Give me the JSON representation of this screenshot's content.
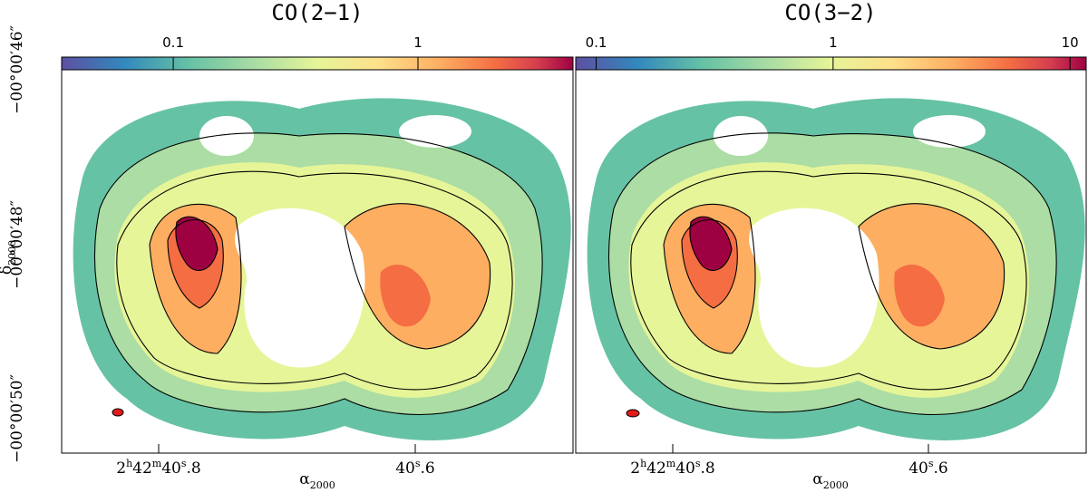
{
  "panels": [
    {
      "title": "CO(2−1)",
      "colorbar": {
        "scale": "log",
        "lim": [
          0.035,
          4.3
        ],
        "ticks": [
          {
            "value": 0.1,
            "label": "0.1"
          },
          {
            "value": 1,
            "label": "1"
          }
        ]
      },
      "x_tick_labels": [
        {
          "parts": [
            "2",
            "h",
            "42",
            "m",
            "40",
            "s",
            ".8"
          ]
        },
        {
          "parts": [
            "40",
            "s",
            ".6"
          ]
        }
      ]
    },
    {
      "title": "CO(3−2)",
      "colorbar": {
        "scale": "log",
        "lim": [
          0.082,
          11.7
        ],
        "ticks": [
          {
            "value": 0.1,
            "label": "0.1"
          },
          {
            "value": 1,
            "label": "1"
          },
          {
            "value": 10,
            "label": "10"
          }
        ]
      },
      "x_tick_labels": [
        {
          "parts": [
            "2",
            "h",
            "42",
            "m",
            "40",
            "s",
            ".8"
          ]
        },
        {
          "parts": [
            "40",
            "s",
            ".6"
          ]
        }
      ]
    }
  ],
  "y_tick_labels": [
    "−00°00′46″",
    "−00°00′48″",
    "−00°00′50″"
  ],
  "x_axis_title": {
    "symbol": "α",
    "sub": "2000"
  },
  "y_axis_title": {
    "symbol": "δ",
    "sub": "2000"
  }
}
